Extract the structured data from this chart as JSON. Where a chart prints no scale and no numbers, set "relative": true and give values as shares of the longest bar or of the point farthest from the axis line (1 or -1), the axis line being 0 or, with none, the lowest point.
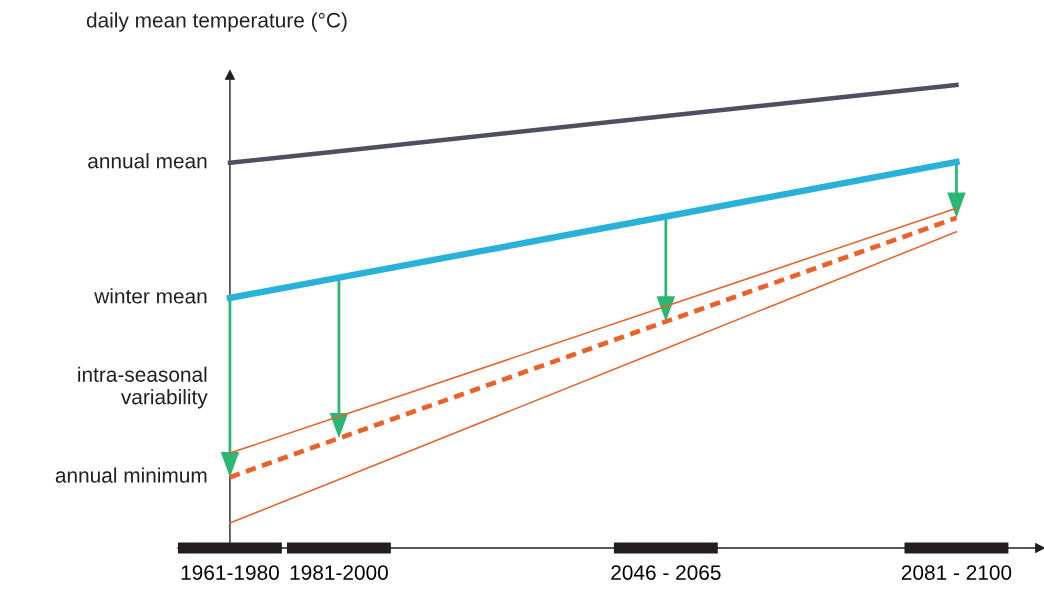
{
  "chart_data": {
    "type": "line",
    "relative": true,
    "ylabel": "daily mean temperature (°C)",
    "categories": [
      "1961-1980",
      null,
      null,
      "1981-2000",
      null,
      null,
      null,
      null,
      null,
      null,
      null,
      null,
      "2046 - 2065",
      null,
      null,
      null,
      null,
      null,
      null,
      null,
      "2081 - 2100"
    ],
    "series": [
      {
        "color": "#4d5060",
        "line_style": "solid",
        "values": [
          0.832,
          null,
          null,
          0.857,
          null,
          null,
          null,
          null,
          null,
          null,
          null,
          null,
          0.933,
          null,
          null,
          null,
          null,
          null,
          null,
          null,
          1.0
        ]
      },
      {
        "color": "#29b1d9",
        "line_style": "solid",
        "values": [
          0.54,
          null,
          null,
          0.584,
          null,
          null,
          null,
          null,
          null,
          null,
          null,
          null,
          0.716,
          null,
          null,
          null,
          null,
          null,
          null,
          null,
          0.834
        ]
      },
      {
        "color": "#e8622a",
        "line_style": "dashed",
        "values": [
          0.153,
          null,
          null,
          0.237,
          null,
          null,
          null,
          null,
          null,
          null,
          null,
          null,
          0.489,
          null,
          null,
          null,
          null,
          null,
          null,
          null,
          0.713
        ]
      },
      {
        "color": "#e8622a",
        "line_style": "solid",
        "values": [
          0.205,
          null,
          null,
          0.284,
          null,
          null,
          null,
          null,
          null,
          null,
          null,
          null,
          0.522,
          null,
          null,
          null,
          null,
          null,
          null,
          null,
          0.734
        ]
      },
      {
        "color": "#e8622a",
        "line_style": "solid",
        "values": [
          0.054,
          null,
          null,
          0.148,
          null,
          null,
          null,
          null,
          null,
          null,
          null,
          null,
          0.431,
          null,
          null,
          null,
          null,
          null,
          null,
          null,
          0.683
        ]
      }
    ],
    "annotations": [
      {
        "text": "annual mean",
        "x": "1961-1980",
        "y": 0.832
      },
      {
        "text": "winter mean",
        "x": "1961-1980",
        "y": 0.54
      },
      "intra-seasonal\nvariability",
      {
        "text": "annual minimum",
        "x": "1961-1980",
        "y": 0.153
      }
    ]
  }
}
